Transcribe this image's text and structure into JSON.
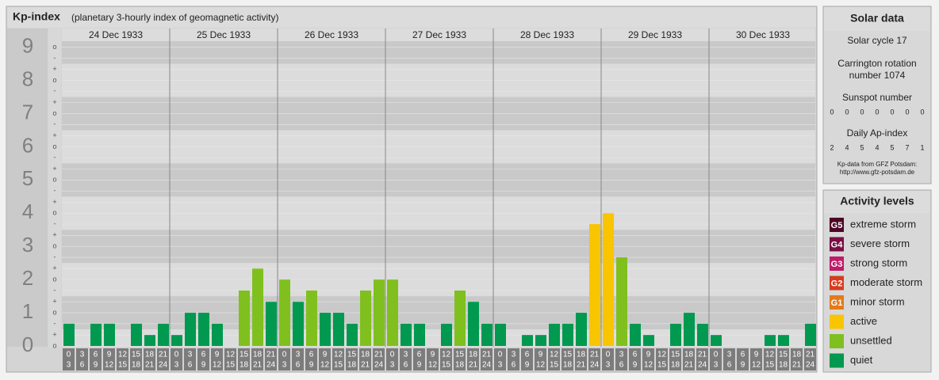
{
  "chart_data": {
    "type": "bar",
    "title": "Kp-index",
    "subtitle": "(planetary 3-hourly index of geomagnetic activity)",
    "days": [
      "24 Dec 1933",
      "25 Dec 1933",
      "26 Dec 1933",
      "27 Dec 1933",
      "28 Dec 1933",
      "29 Dec 1933",
      "30 Dec 1933"
    ],
    "hours_start": [
      0,
      3,
      6,
      9,
      12,
      15,
      18,
      21
    ],
    "hours_end": [
      3,
      6,
      9,
      12,
      15,
      18,
      21,
      24
    ],
    "values": [
      0.67,
      0,
      0.67,
      0.67,
      0,
      0.67,
      0.33,
      0.67,
      0.33,
      1,
      1,
      0.67,
      0,
      1.67,
      2.33,
      1.33,
      2,
      1.33,
      1.67,
      1,
      1,
      0.67,
      1.67,
      2,
      2,
      0.67,
      0.67,
      0,
      0.67,
      1.67,
      1.33,
      0.67,
      0.67,
      0,
      0.33,
      0.33,
      0.67,
      0.67,
      1,
      3.67,
      4,
      2.67,
      0.67,
      0.33,
      0,
      0.67,
      1,
      0.67,
      0.33,
      0,
      0,
      0,
      0.33,
      0.33,
      0,
      0.67
    ],
    "colors": [
      "#00994f",
      "#00994f",
      "#00994f",
      "#00994f",
      "#00994f",
      "#00994f",
      "#00994f",
      "#00994f",
      "#00994f",
      "#00994f",
      "#00994f",
      "#00994f",
      "#00994f",
      "#80c01e",
      "#80c01e",
      "#00994f",
      "#80c01e",
      "#00994f",
      "#80c01e",
      "#00994f",
      "#00994f",
      "#00994f",
      "#80c01e",
      "#80c01e",
      "#80c01e",
      "#00994f",
      "#00994f",
      "#00994f",
      "#00994f",
      "#80c01e",
      "#00994f",
      "#00994f",
      "#00994f",
      "#00994f",
      "#00994f",
      "#00994f",
      "#00994f",
      "#00994f",
      "#00994f",
      "#f9c400",
      "#f9c400",
      "#80c01e",
      "#00994f",
      "#00994f",
      "#00994f",
      "#00994f",
      "#00994f",
      "#00994f",
      "#00994f",
      "#00994f",
      "#00994f",
      "#00994f",
      "#00994f",
      "#00994f",
      "#00994f",
      "#00994f"
    ],
    "ylim": [
      0,
      9.2
    ],
    "yticks": [
      0,
      1,
      2,
      3,
      4,
      5,
      6,
      7,
      8,
      9
    ],
    "minor_ticks": [
      {
        "value": 0,
        "label": "o"
      },
      {
        "value": 0.33,
        "label": "+"
      },
      {
        "value": 0.67,
        "label": "-"
      },
      {
        "value": 1,
        "label": "o"
      },
      {
        "value": 1.33,
        "label": "+"
      },
      {
        "value": 1.67,
        "label": "-"
      },
      {
        "value": 2,
        "label": "o"
      },
      {
        "value": 2.33,
        "label": "+"
      },
      {
        "value": 2.67,
        "label": "-"
      },
      {
        "value": 3,
        "label": "o"
      },
      {
        "value": 3.33,
        "label": "+"
      },
      {
        "value": 3.67,
        "label": "-"
      },
      {
        "value": 4,
        "label": "o"
      },
      {
        "value": 4.33,
        "label": "+"
      },
      {
        "value": 4.67,
        "label": "-"
      },
      {
        "value": 5,
        "label": "o"
      },
      {
        "value": 5.33,
        "label": "+"
      },
      {
        "value": 5.67,
        "label": "-"
      },
      {
        "value": 6,
        "label": "o"
      },
      {
        "value": 6.33,
        "label": "+"
      },
      {
        "value": 6.67,
        "label": "-"
      },
      {
        "value": 7,
        "label": "o"
      },
      {
        "value": 7.33,
        "label": "+"
      },
      {
        "value": 7.67,
        "label": "-"
      },
      {
        "value": 8,
        "label": "o"
      },
      {
        "value": 8.33,
        "label": "+"
      },
      {
        "value": 8.67,
        "label": "-"
      },
      {
        "value": 9,
        "label": "o"
      }
    ]
  },
  "solar": {
    "title": "Solar data",
    "cycle": "Solar cycle 17",
    "rotation_1": "Carrington rotation",
    "rotation_2": "number 1074",
    "sunspot_title": "Sunspot number",
    "sunspots": [
      0,
      0,
      0,
      0,
      0,
      0,
      0
    ],
    "ap_title": "Daily Ap-index",
    "ap": [
      2,
      4,
      5,
      4,
      5,
      7,
      1
    ],
    "source": "Kp-data from GFZ Potsdam:",
    "url": "http://www.gfz-potsdam.de"
  },
  "activity": {
    "title": "Activity levels",
    "levels": [
      {
        "badge": "G5",
        "name": "extreme storm",
        "color": "#4d0526"
      },
      {
        "badge": "G4",
        "name": "severe storm",
        "color": "#7a0f45"
      },
      {
        "badge": "G3",
        "name": "strong storm",
        "color": "#bf1c68"
      },
      {
        "badge": "G2",
        "name": "moderate storm",
        "color": "#d63c1e"
      },
      {
        "badge": "G1",
        "name": "minor storm",
        "color": "#e57a1a"
      },
      {
        "name": "active",
        "color": "#f9c400"
      },
      {
        "name": "unsettled",
        "color": "#80c01e"
      },
      {
        "name": "quiet",
        "color": "#00994f"
      }
    ]
  }
}
